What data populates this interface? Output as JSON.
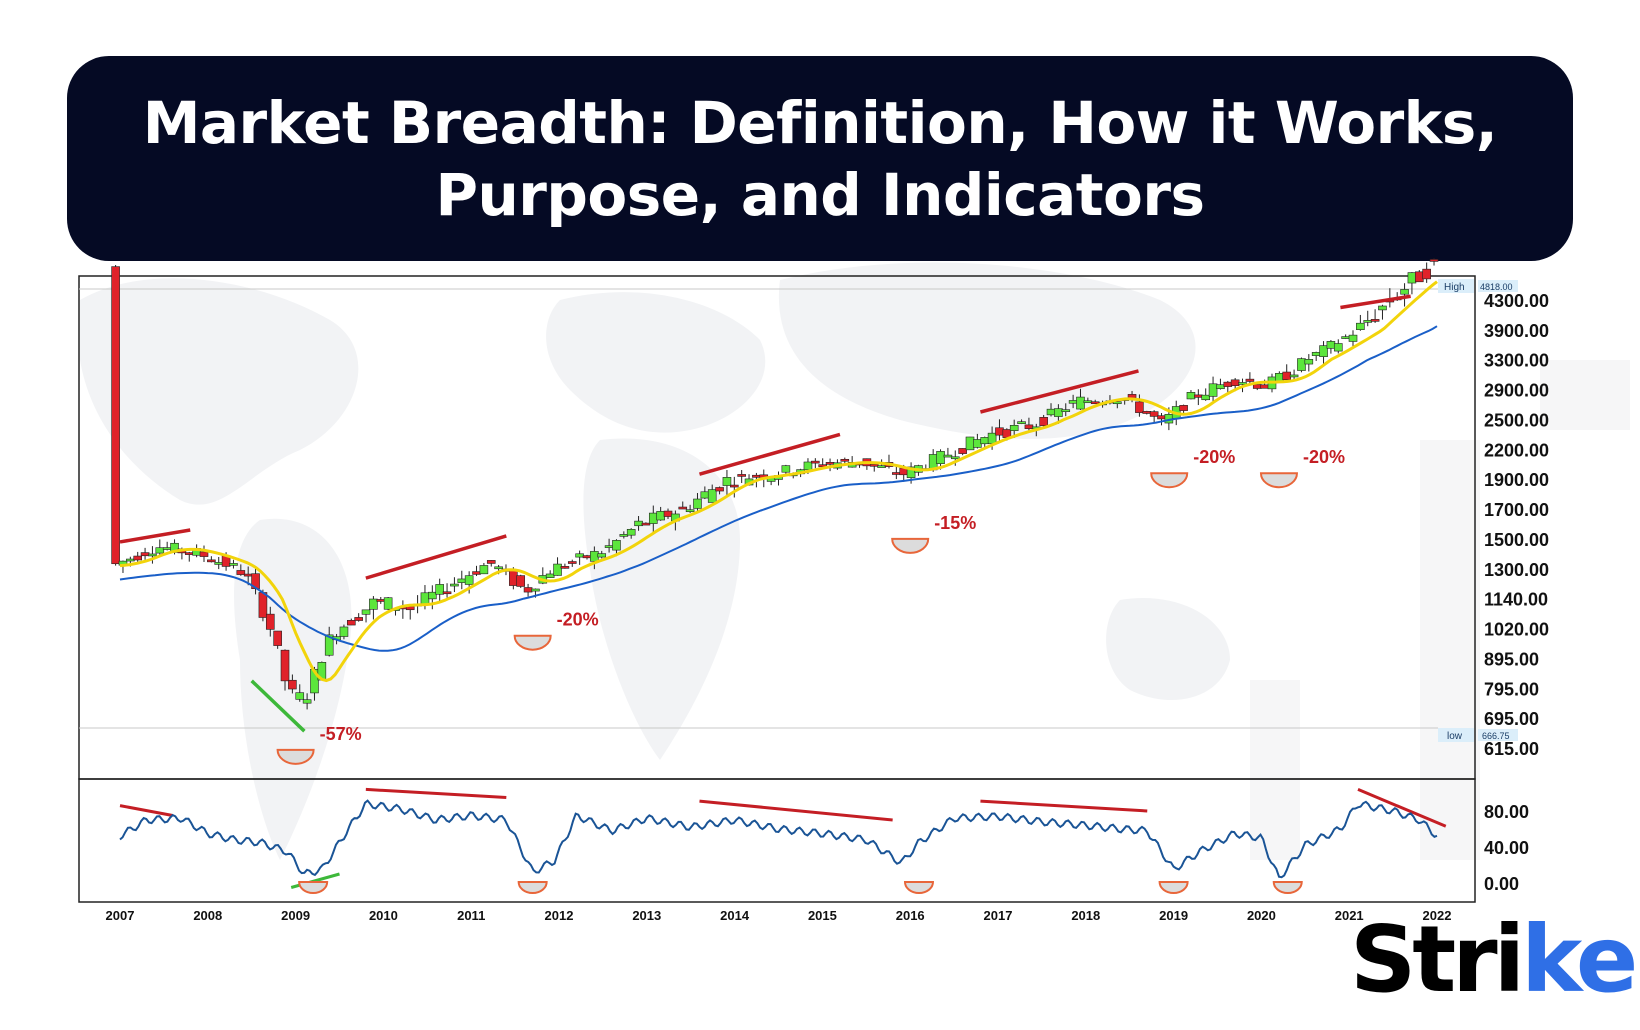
{
  "title": {
    "line1": "Market Breadth: Definition, How it Works,",
    "line2": "Purpose, and Indicators"
  },
  "logo": {
    "text": "Stri",
    "accent": "ke",
    "accent_color": "#2f6fe6"
  },
  "colors": {
    "banner": "#050a24",
    "bull": "#5ce63c",
    "bear": "#e0222a",
    "ma_fast": "#f2d40b",
    "ma_slow": "#1a5fc8",
    "oscillator": "#1a5496",
    "divergence": "#c41e24",
    "divergence_bull": "#3db83a",
    "bottom_marker": "#e8663a"
  },
  "chart_data": {
    "type": "candlestick",
    "title": "",
    "x_axis": {
      "tick_labels": [
        "2007",
        "2008",
        "2009",
        "2010",
        "2011",
        "2012",
        "2013",
        "2014",
        "2015",
        "2016",
        "2017",
        "2018",
        "2019",
        "2020",
        "2021",
        "2022"
      ]
    },
    "y_axis": {
      "scale": "piecewise",
      "tick_labels": [
        "4300.00",
        "3900.00",
        "3300.00",
        "2900.00",
        "2500.00",
        "2200.00",
        "1900.00",
        "1700.00",
        "1500.00",
        "1300.00",
        "1140.00",
        "1020.00",
        "895.00",
        "795.00",
        "695.00",
        "615.00"
      ]
    },
    "high_marker": {
      "label": "High",
      "value": "4818.00"
    },
    "low_marker": {
      "label": "low",
      "value": "666.75"
    },
    "drawdowns": [
      {
        "label": "-57%",
        "year": 2009
      },
      {
        "label": "-20%",
        "year": 2011.7
      },
      {
        "label": "-15%",
        "year": 2016.0
      },
      {
        "label": "-20%",
        "year": 2018.95
      },
      {
        "label": "-20%",
        "year": 2020.2
      }
    ],
    "oscillator_axis": {
      "tick_labels": [
        "80.00",
        "40.00",
        "0.00"
      ]
    },
    "legend": "none",
    "grid": false
  }
}
